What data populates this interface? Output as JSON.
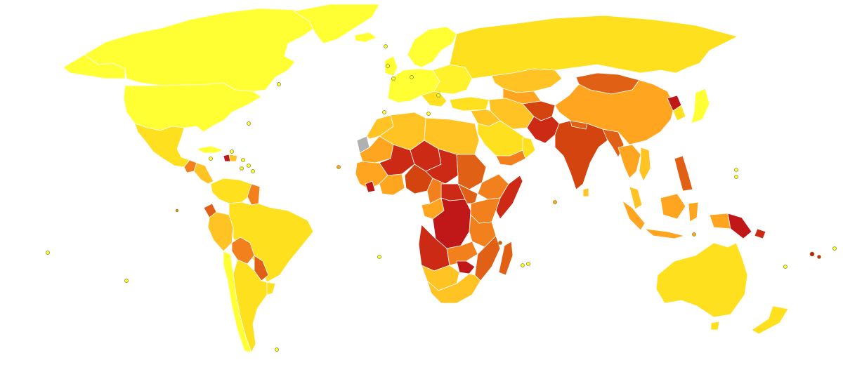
{
  "map": {
    "kind": "world-choropleth",
    "projection": "equirectangular",
    "background": "#ffffff",
    "no_data_color": "#b0b0b0",
    "color_scale": [
      "#ffff33",
      "#fff12a",
      "#ffe01e",
      "#ffc424",
      "#ffa51f",
      "#f2801c",
      "#e06016",
      "#d4440f",
      "#cc2a14",
      "#c01818"
    ],
    "legend_visible": false,
    "title_visible": false
  }
}
